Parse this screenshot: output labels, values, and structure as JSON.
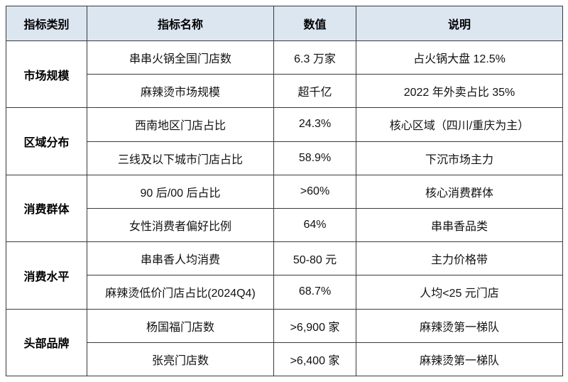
{
  "table": {
    "headers": [
      "指标类别",
      "指标名称",
      "数值",
      "说明"
    ],
    "groups": [
      {
        "category": "市场规模",
        "rows": [
          {
            "name": "串串火锅全国门店数",
            "value": "6.3 万家",
            "note": "占火锅大盘 12.5%"
          },
          {
            "name": "麻辣烫市场规模",
            "value": "超千亿",
            "note": "2022 年外卖占比 35%"
          }
        ]
      },
      {
        "category": "区域分布",
        "rows": [
          {
            "name": "西南地区门店占比",
            "value": "24.3%",
            "note": "核心区域（四川/重庆为主）"
          },
          {
            "name": "三线及以下城市门店占比",
            "value": "58.9%",
            "note": "下沉市场主力"
          }
        ]
      },
      {
        "category": "消费群体",
        "rows": [
          {
            "name": "90 后/00 后占比",
            "value": ">60%",
            "note": "核心消费群体"
          },
          {
            "name": "女性消费者偏好比例",
            "value": "64%",
            "note": "串串香品类"
          }
        ]
      },
      {
        "category": "消费水平",
        "rows": [
          {
            "name": "串串香人均消费",
            "value": "50-80 元",
            "note": "主力价格带"
          },
          {
            "name": "麻辣烫低价门店占比(2024Q4)",
            "value": "68.7%",
            "note": "人均<25 元门店"
          }
        ]
      },
      {
        "category": "头部品牌",
        "rows": [
          {
            "name": "杨国福门店数",
            "value": ">6,900 家",
            "note": "麻辣烫第一梯队"
          },
          {
            "name": "张亮门店数",
            "value": ">6,400 家",
            "note": "麻辣烫第一梯队"
          }
        ]
      }
    ],
    "colors": {
      "header_bg": "#dce6f1",
      "border": "#3a3a3a",
      "text": "#111111"
    }
  }
}
